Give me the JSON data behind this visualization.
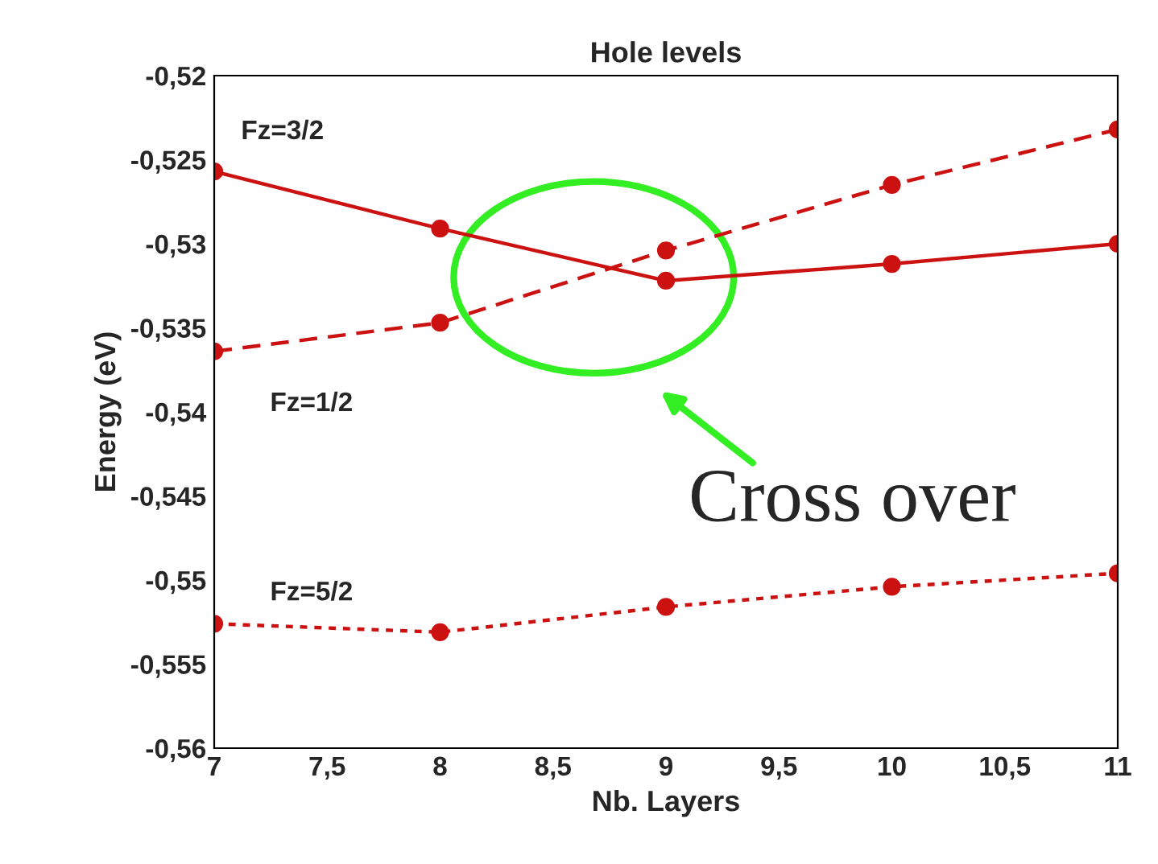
{
  "chart_data": {
    "type": "line",
    "title": "Hole levels",
    "xlabel": "Nb. Layers",
    "ylabel": "Energy (eV)",
    "x": [
      7,
      8,
      9,
      10,
      11
    ],
    "series": [
      {
        "name": "Fz=3/2",
        "color": "#cc1111",
        "line_style": "solid",
        "values": [
          -0.5257,
          -0.5291,
          -0.5322,
          -0.5312,
          -0.53
        ]
      },
      {
        "name": "Fz=1/2",
        "color": "#cc1111",
        "line_style": "dashed",
        "values": [
          -0.5364,
          -0.5347,
          -0.5304,
          -0.5265,
          -0.5232
        ]
      },
      {
        "name": "Fz=5/2",
        "color": "#cc1111",
        "line_style": "dotted",
        "values": [
          -0.5526,
          -0.5531,
          -0.5516,
          -0.5504,
          -0.5496
        ]
      }
    ],
    "marker": "circle",
    "grid": false,
    "legend": false,
    "xlim": [
      7,
      11
    ],
    "xticks": [
      7,
      {
        "value": 7.5,
        "label": "7,5"
      },
      8,
      {
        "value": 8.5,
        "label": "8,5"
      },
      9,
      {
        "value": 9.5,
        "label": "9,5"
      },
      10,
      {
        "value": 10.5,
        "label": "10,5"
      },
      11
    ],
    "ylim": [
      -0.56,
      -0.52
    ],
    "yticks": [
      {
        "value": -0.56,
        "label": "-0,56"
      },
      {
        "value": -0.555,
        "label": "-0,555"
      },
      {
        "value": -0.55,
        "label": "-0,55"
      },
      {
        "value": -0.545,
        "label": "-0,545"
      },
      {
        "value": -0.54,
        "label": "-0,54"
      },
      {
        "value": -0.535,
        "label": "-0,535"
      },
      {
        "value": -0.53,
        "label": "-0,53"
      },
      {
        "value": -0.525,
        "label": "-0,525"
      },
      {
        "value": -0.52,
        "label": "-0,52"
      }
    ],
    "annotations": [
      "Cross over"
    ]
  }
}
